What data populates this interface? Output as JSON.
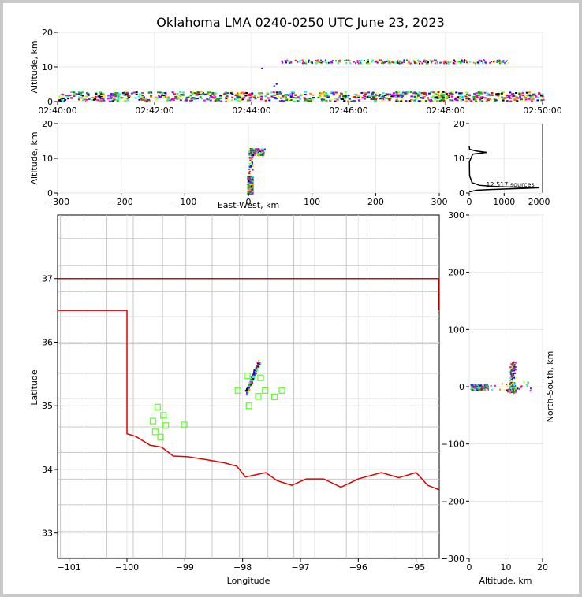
{
  "title": "Oklahoma LMA 0240-0250 UTC June 23, 2023",
  "chart_data": [
    {
      "id": "time_height",
      "type": "scatter",
      "xlabel": "",
      "ylabel": "Altitude, km",
      "x_ticks": [
        "02:40:00",
        "02:42:00",
        "02:44:00",
        "02:46:00",
        "02:48:00",
        "02:50:00"
      ],
      "xlim_minutes": [
        0,
        10
      ],
      "ylim": [
        0,
        20
      ],
      "y_ticks": [
        0,
        10,
        20
      ],
      "layers": [
        {
          "x_range_min": [
            0,
            10
          ],
          "y_range_km": [
            0.3,
            3.0
          ],
          "note_colors": "multicolor by time"
        },
        {
          "x_range_min": [
            4.5,
            9.3
          ],
          "y_range_km": [
            11.0,
            12.3
          ]
        }
      ]
    },
    {
      "id": "ew_altitude",
      "type": "scatter",
      "xlabel": "East-West, km",
      "ylabel": "Altitude, km",
      "xlim": [
        -300,
        300
      ],
      "x_ticks": [
        "−300",
        "−200",
        "−100",
        "0",
        "100",
        "200",
        "300"
      ],
      "ylim": [
        0,
        20
      ],
      "y_ticks": [
        0,
        10,
        20
      ],
      "clusters": [
        {
          "x_range_km": [
            -2,
            8
          ],
          "y_range_km": [
            0,
            5
          ]
        },
        {
          "x_range_km": [
            0,
            25
          ],
          "y_range_km": [
            11,
            13
          ]
        }
      ]
    },
    {
      "id": "altitude_histogram",
      "type": "line",
      "xlabel": "",
      "xlim": [
        0,
        2100
      ],
      "x_ticks": [
        "0",
        "1000",
        "2000"
      ],
      "ylim": [
        0,
        20
      ],
      "y_ticks": [
        0,
        10,
        20
      ],
      "annotation": "12,517 sources",
      "profile": [
        [
          0,
          0.3
        ],
        [
          200,
          0.8
        ],
        [
          600,
          1.0
        ],
        [
          1500,
          1.3
        ],
        [
          2000,
          1.5
        ],
        [
          900,
          1.8
        ],
        [
          300,
          2.2
        ],
        [
          80,
          3.0
        ],
        [
          10,
          5
        ],
        [
          5,
          9
        ],
        [
          100,
          11.2
        ],
        [
          500,
          11.7
        ],
        [
          200,
          12.1
        ],
        [
          10,
          12.6
        ],
        [
          0,
          13.5
        ]
      ]
    },
    {
      "id": "plan_view",
      "type": "map",
      "xlabel": "Longitude",
      "ylabel": "Latitude",
      "xlim": [
        -101.2,
        -94.6
      ],
      "ylim": [
        32.6,
        38.0
      ],
      "x_ticks": [
        "−101",
        "−100",
        "−99",
        "−98",
        "−97",
        "−96",
        "−95"
      ],
      "y_ticks": [
        "33",
        "34",
        "35",
        "36",
        "37"
      ],
      "stations": [
        {
          "lon": -97.92,
          "lat": 35.47
        },
        {
          "lon": -97.69,
          "lat": 35.44
        },
        {
          "lon": -98.08,
          "lat": 35.24
        },
        {
          "lon": -97.61,
          "lat": 35.24
        },
        {
          "lon": -97.32,
          "lat": 35.24
        },
        {
          "lon": -97.73,
          "lat": 35.15
        },
        {
          "lon": -97.45,
          "lat": 35.14
        },
        {
          "lon": -97.89,
          "lat": 35.0
        },
        {
          "lon": -99.47,
          "lat": 34.98
        },
        {
          "lon": -99.37,
          "lat": 34.85
        },
        {
          "lon": -99.55,
          "lat": 34.76
        },
        {
          "lon": -99.33,
          "lat": 34.69
        },
        {
          "lon": -99.01,
          "lat": 34.7
        },
        {
          "lon": -99.51,
          "lat": 34.59
        },
        {
          "lon": -99.42,
          "lat": 34.51
        }
      ],
      "lightning_cluster": {
        "lon_range": [
          -97.95,
          -97.7
        ],
        "lat_range": [
          35.2,
          35.7
        ]
      }
    },
    {
      "id": "altitude_ns",
      "type": "scatter",
      "xlabel": "Altitude, km",
      "ylabel": "North-South, km",
      "xlim": [
        0,
        20
      ],
      "x_ticks": [
        "0",
        "10",
        "20"
      ],
      "ylim": [
        -300,
        300
      ],
      "y_ticks": [
        "−300",
        "−200",
        "−100",
        "0",
        "100",
        "200",
        "300"
      ],
      "clusters": [
        {
          "x_range_km": [
            0.3,
            5
          ],
          "y_range_km": [
            -5,
            5
          ]
        },
        {
          "x_range_km": [
            11,
            12.5
          ],
          "y_range_km": [
            -10,
            45
          ]
        }
      ]
    }
  ]
}
